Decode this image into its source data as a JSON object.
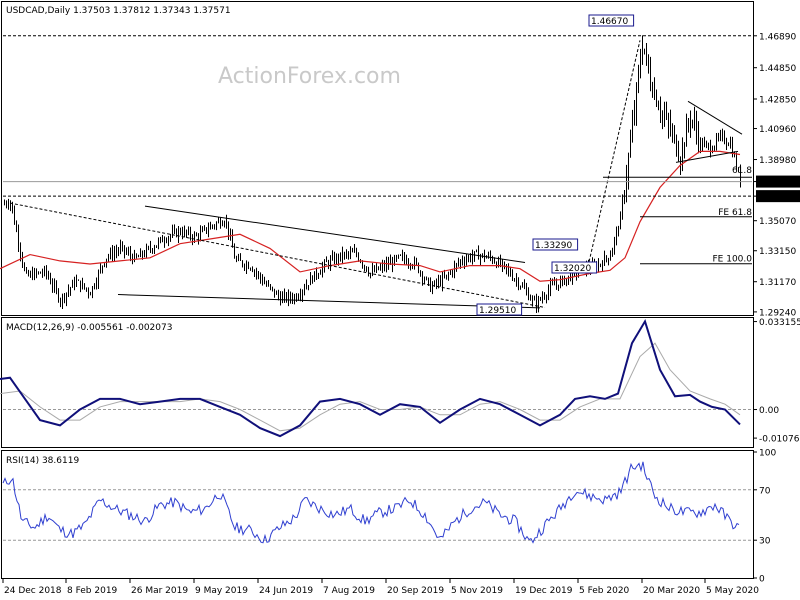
{
  "chart_data": [
    {
      "type": "candlestick",
      "title": "USDCAD,Daily  1.37503 1.37812 1.37343 1.37571",
      "watermark": "ActionForex.com",
      "ylim": [
        1.2885,
        1.4905
      ],
      "y_ticks": [
        "1.46890",
        "1.44850",
        "1.42850",
        "1.40960",
        "1.38980",
        "1.37571",
        "1.36640",
        "1.35070",
        "1.33150",
        "1.31170",
        "1.29240"
      ],
      "x_ticks": [
        "24 Dec 2018",
        "8 Feb 2019",
        "26 Mar 2019",
        "9 May 2019",
        "24 Jun 2019",
        "7 Aug 2019",
        "20 Sep 2019",
        "5 Nov 2019",
        "19 Dec 2019",
        "5 Feb 2020",
        "20 Mar 2020",
        "5 May 2020"
      ],
      "price_path": [
        [
          0,
          1.361
        ],
        [
          10,
          1.363
        ],
        [
          25,
          1.315
        ],
        [
          45,
          1.318
        ],
        [
          60,
          1.3
        ],
        [
          75,
          1.312
        ],
        [
          90,
          1.305
        ],
        [
          105,
          1.327
        ],
        [
          120,
          1.333
        ],
        [
          135,
          1.326
        ],
        [
          150,
          1.333
        ],
        [
          165,
          1.34
        ],
        [
          180,
          1.344
        ],
        [
          195,
          1.34
        ],
        [
          210,
          1.347
        ],
        [
          225,
          1.352
        ],
        [
          235,
          1.325
        ],
        [
          250,
          1.322
        ],
        [
          265,
          1.31
        ],
        [
          280,
          1.301
        ],
        [
          295,
          1.302
        ],
        [
          310,
          1.313
        ],
        [
          325,
          1.323
        ],
        [
          340,
          1.328
        ],
        [
          355,
          1.33
        ],
        [
          370,
          1.317
        ],
        [
          385,
          1.322
        ],
        [
          400,
          1.327
        ],
        [
          415,
          1.323
        ],
        [
          430,
          1.308
        ],
        [
          445,
          1.314
        ],
        [
          460,
          1.325
        ],
        [
          475,
          1.329
        ],
        [
          490,
          1.327
        ],
        [
          505,
          1.32
        ],
        [
          520,
          1.31
        ],
        [
          535,
          1.297
        ],
        [
          550,
          1.308
        ],
        [
          565,
          1.313
        ],
        [
          580,
          1.32
        ],
        [
          595,
          1.321
        ],
        [
          610,
          1.329
        ],
        [
          620,
          1.352
        ],
        [
          630,
          1.4
        ],
        [
          642,
          1.465
        ],
        [
          650,
          1.44
        ],
        [
          660,
          1.422
        ],
        [
          670,
          1.408
        ],
        [
          680,
          1.392
        ],
        [
          690,
          1.418
        ],
        [
          700,
          1.4
        ],
        [
          710,
          1.397
        ],
        [
          720,
          1.404
        ],
        [
          730,
          1.4
        ],
        [
          740,
          1.3757
        ]
      ],
      "ma_path": [
        [
          0,
          1.32
        ],
        [
          30,
          1.329
        ],
        [
          60,
          1.325
        ],
        [
          90,
          1.323
        ],
        [
          120,
          1.325
        ],
        [
          150,
          1.327
        ],
        [
          180,
          1.336
        ],
        [
          210,
          1.339
        ],
        [
          240,
          1.342
        ],
        [
          270,
          1.333
        ],
        [
          300,
          1.318
        ],
        [
          330,
          1.322
        ],
        [
          360,
          1.325
        ],
        [
          390,
          1.323
        ],
        [
          420,
          1.322
        ],
        [
          440,
          1.318
        ],
        [
          470,
          1.322
        ],
        [
          500,
          1.322
        ],
        [
          520,
          1.32
        ],
        [
          540,
          1.312
        ],
        [
          560,
          1.313
        ],
        [
          590,
          1.317
        ],
        [
          610,
          1.319
        ],
        [
          625,
          1.327
        ],
        [
          640,
          1.35
        ],
        [
          660,
          1.372
        ],
        [
          680,
          1.386
        ],
        [
          700,
          1.395
        ],
        [
          720,
          1.395
        ],
        [
          740,
          1.393
        ]
      ],
      "annotations": [
        {
          "text": "1.46670",
          "boxed": true
        },
        {
          "text": "1.33290",
          "boxed": true
        },
        {
          "text": "1.32020",
          "boxed": true
        },
        {
          "text": "1.29510",
          "boxed": true
        },
        {
          "text": "FE 61.8",
          "boxed": false
        },
        {
          "text": "FE 100.0",
          "boxed": false
        },
        {
          "text": "61.8",
          "boxed": false
        }
      ],
      "current_price": "1.37571",
      "highlight_level": "1.36640"
    },
    {
      "type": "line",
      "title": "MACD(12,26,9) -0.005561 -0.002073",
      "ylim": [
        -0.0145,
        0.0345
      ],
      "y_ticks": [
        "0.033155",
        "0.00",
        "-0.010769"
      ],
      "macd_path": [
        [
          0,
          0.0115
        ],
        [
          10,
          0.012
        ],
        [
          25,
          0.004
        ],
        [
          40,
          -0.004
        ],
        [
          60,
          -0.006
        ],
        [
          80,
          0.0
        ],
        [
          100,
          0.004
        ],
        [
          120,
          0.004
        ],
        [
          140,
          0.002
        ],
        [
          160,
          0.003
        ],
        [
          180,
          0.004
        ],
        [
          200,
          0.004
        ],
        [
          220,
          0.001
        ],
        [
          240,
          -0.002
        ],
        [
          260,
          -0.007
        ],
        [
          280,
          -0.01
        ],
        [
          300,
          -0.006
        ],
        [
          320,
          0.003
        ],
        [
          340,
          0.004
        ],
        [
          360,
          0.002
        ],
        [
          380,
          -0.002
        ],
        [
          400,
          0.002
        ],
        [
          420,
          0.001
        ],
        [
          440,
          -0.005
        ],
        [
          460,
          0.0
        ],
        [
          480,
          0.004
        ],
        [
          500,
          0.002
        ],
        [
          520,
          -0.002
        ],
        [
          540,
          -0.006
        ],
        [
          560,
          -0.002
        ],
        [
          575,
          0.004
        ],
        [
          590,
          0.005
        ],
        [
          605,
          0.004
        ],
        [
          618,
          0.006
        ],
        [
          632,
          0.025
        ],
        [
          645,
          0.0332
        ],
        [
          660,
          0.015
        ],
        [
          675,
          0.005
        ],
        [
          690,
          0.0055
        ],
        [
          700,
          0.003
        ],
        [
          712,
          0.001
        ],
        [
          725,
          0.0
        ],
        [
          740,
          -0.0056
        ]
      ],
      "signal_path": [
        [
          0,
          0.006
        ],
        [
          20,
          0.007
        ],
        [
          40,
          0.001
        ],
        [
          60,
          -0.004
        ],
        [
          80,
          -0.004
        ],
        [
          100,
          0.001
        ],
        [
          120,
          0.003
        ],
        [
          140,
          0.003
        ],
        [
          160,
          0.003
        ],
        [
          180,
          0.003
        ],
        [
          200,
          0.004
        ],
        [
          220,
          0.003
        ],
        [
          240,
          0.0
        ],
        [
          260,
          -0.004
        ],
        [
          280,
          -0.008
        ],
        [
          300,
          -0.007
        ],
        [
          320,
          -0.002
        ],
        [
          340,
          0.002
        ],
        [
          360,
          0.003
        ],
        [
          380,
          0.0
        ],
        [
          400,
          0.0
        ],
        [
          420,
          0.001
        ],
        [
          440,
          -0.002
        ],
        [
          460,
          -0.002
        ],
        [
          480,
          0.002
        ],
        [
          500,
          0.003
        ],
        [
          520,
          0.0
        ],
        [
          540,
          -0.004
        ],
        [
          560,
          -0.004
        ],
        [
          580,
          0.001
        ],
        [
          600,
          0.004
        ],
        [
          620,
          0.004
        ],
        [
          640,
          0.02
        ],
        [
          655,
          0.025
        ],
        [
          670,
          0.015
        ],
        [
          690,
          0.007
        ],
        [
          710,
          0.004
        ],
        [
          725,
          0.002
        ],
        [
          740,
          -0.002
        ]
      ]
    },
    {
      "type": "line",
      "title": "RSI(14) 38.6119",
      "ylim": [
        0,
        100
      ],
      "y_ticks": [
        "100",
        "70",
        "30",
        "0"
      ],
      "rsi_path": [
        [
          0,
          72
        ],
        [
          12,
          80
        ],
        [
          22,
          45
        ],
        [
          35,
          40
        ],
        [
          48,
          50
        ],
        [
          60,
          38
        ],
        [
          72,
          35
        ],
        [
          85,
          42
        ],
        [
          100,
          62
        ],
        [
          115,
          55
        ],
        [
          130,
          50
        ],
        [
          145,
          45
        ],
        [
          160,
          58
        ],
        [
          175,
          60
        ],
        [
          190,
          52
        ],
        [
          205,
          55
        ],
        [
          220,
          68
        ],
        [
          235,
          40
        ],
        [
          250,
          38
        ],
        [
          265,
          30
        ],
        [
          280,
          40
        ],
        [
          295,
          48
        ],
        [
          305,
          62
        ],
        [
          320,
          55
        ],
        [
          335,
          50
        ],
        [
          350,
          55
        ],
        [
          365,
          45
        ],
        [
          380,
          52
        ],
        [
          395,
          55
        ],
        [
          410,
          62
        ],
        [
          425,
          50
        ],
        [
          440,
          30
        ],
        [
          455,
          45
        ],
        [
          470,
          55
        ],
        [
          485,
          60
        ],
        [
          500,
          50
        ],
        [
          515,
          45
        ],
        [
          530,
          28
        ],
        [
          545,
          42
        ],
        [
          560,
          55
        ],
        [
          575,
          70
        ],
        [
          590,
          65
        ],
        [
          605,
          62
        ],
        [
          620,
          68
        ],
        [
          632,
          88
        ],
        [
          642,
          90
        ],
        [
          655,
          65
        ],
        [
          670,
          55
        ],
        [
          685,
          52
        ],
        [
          700,
          52
        ],
        [
          715,
          58
        ],
        [
          730,
          45
        ],
        [
          740,
          39
        ]
      ]
    }
  ]
}
